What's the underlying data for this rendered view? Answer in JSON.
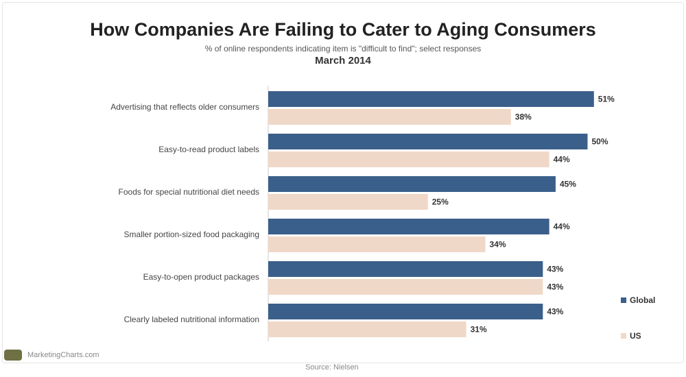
{
  "chart_data": {
    "type": "bar",
    "orientation": "horizontal",
    "title": "How Companies Are Failing to Cater to Aging Consumers",
    "subtitle": "% of online respondents indicating item is \"difficult to find\"; select responses",
    "date": "March 2014",
    "categories": [
      "Advertising that reflects older consumers",
      "Easy-to-read product labels",
      "Foods for special nutritional diet needs",
      "Smaller portion-sized food packaging",
      "Easy-to-open product packages",
      "Clearly labeled nutritional information"
    ],
    "series": [
      {
        "name": "Global",
        "color": "#3a5f8a",
        "values": [
          51,
          50,
          45,
          44,
          43,
          43
        ]
      },
      {
        "name": "US",
        "color": "#f0d8c8",
        "values": [
          38,
          44,
          25,
          34,
          43,
          31
        ]
      }
    ],
    "value_suffix": "%",
    "xlim": [
      0,
      60
    ],
    "grid": false,
    "legend_position": "right"
  },
  "footer": {
    "brand": "MarketingCharts.com",
    "source": "Source: Nielsen"
  }
}
